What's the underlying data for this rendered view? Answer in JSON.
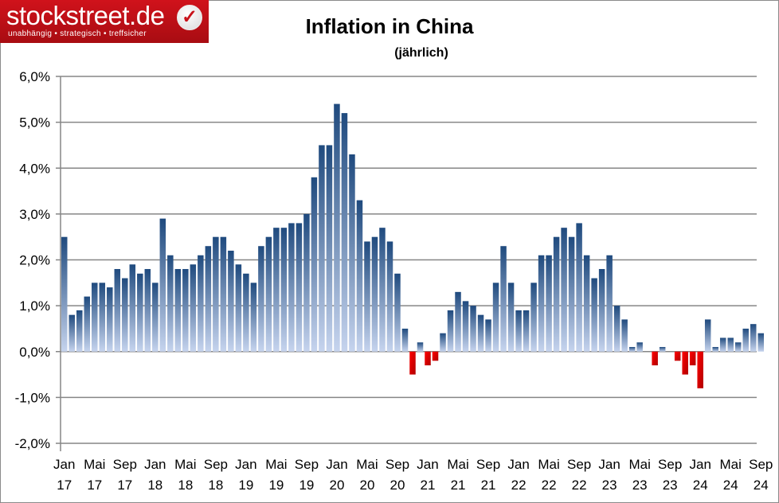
{
  "logo": {
    "name": "stockstreet.de",
    "tagline": "unabhängig • strategisch • treffsicher"
  },
  "chart_data": {
    "type": "bar",
    "title": "Inflation in China",
    "subtitle": "(jährlich)",
    "ylim": [
      -2,
      6
    ],
    "yticks": [
      "-2,0%",
      "-1,0%",
      "0,0%",
      "1,0%",
      "2,0%",
      "3,0%",
      "4,0%",
      "5,0%",
      "6,0%"
    ],
    "grid": true,
    "colors": {
      "positive_top": "#1f4a7e",
      "positive_bottom": "#c6d4ee",
      "negative_top": "#ff0000",
      "negative_bottom": "#b00000"
    },
    "xtick_labels": [
      {
        "month": "Jan",
        "year": "17"
      },
      {
        "month": "Mai",
        "year": "17"
      },
      {
        "month": "Sep",
        "year": "17"
      },
      {
        "month": "Jan",
        "year": "18"
      },
      {
        "month": "Mai",
        "year": "18"
      },
      {
        "month": "Sep",
        "year": "18"
      },
      {
        "month": "Jan",
        "year": "19"
      },
      {
        "month": "Mai",
        "year": "19"
      },
      {
        "month": "Sep",
        "year": "19"
      },
      {
        "month": "Jan",
        "year": "20"
      },
      {
        "month": "Mai",
        "year": "20"
      },
      {
        "month": "Sep",
        "year": "20"
      },
      {
        "month": "Jan",
        "year": "21"
      },
      {
        "month": "Mai",
        "year": "21"
      },
      {
        "month": "Sep",
        "year": "21"
      },
      {
        "month": "Jan",
        "year": "22"
      },
      {
        "month": "Mai",
        "year": "22"
      },
      {
        "month": "Sep",
        "year": "22"
      },
      {
        "month": "Jan",
        "year": "23"
      },
      {
        "month": "Mai",
        "year": "23"
      },
      {
        "month": "Sep",
        "year": "23"
      },
      {
        "month": "Jan",
        "year": "24"
      },
      {
        "month": "Mai",
        "year": "24"
      },
      {
        "month": "Sep",
        "year": "24"
      }
    ],
    "categories": [
      "2017-01",
      "2017-02",
      "2017-03",
      "2017-04",
      "2017-05",
      "2017-06",
      "2017-07",
      "2017-08",
      "2017-09",
      "2017-10",
      "2017-11",
      "2017-12",
      "2018-01",
      "2018-02",
      "2018-03",
      "2018-04",
      "2018-05",
      "2018-06",
      "2018-07",
      "2018-08",
      "2018-09",
      "2018-10",
      "2018-11",
      "2018-12",
      "2019-01",
      "2019-02",
      "2019-03",
      "2019-04",
      "2019-05",
      "2019-06",
      "2019-07",
      "2019-08",
      "2019-09",
      "2019-10",
      "2019-11",
      "2019-12",
      "2020-01",
      "2020-02",
      "2020-03",
      "2020-04",
      "2020-05",
      "2020-06",
      "2020-07",
      "2020-08",
      "2020-09",
      "2020-10",
      "2020-11",
      "2020-12",
      "2021-01",
      "2021-02",
      "2021-03",
      "2021-04",
      "2021-05",
      "2021-06",
      "2021-07",
      "2021-08",
      "2021-09",
      "2021-10",
      "2021-11",
      "2021-12",
      "2022-01",
      "2022-02",
      "2022-03",
      "2022-04",
      "2022-05",
      "2022-06",
      "2022-07",
      "2022-08",
      "2022-09",
      "2022-10",
      "2022-11",
      "2022-12",
      "2023-01",
      "2023-02",
      "2023-03",
      "2023-04",
      "2023-05",
      "2023-06",
      "2023-07",
      "2023-08",
      "2023-09",
      "2023-10",
      "2023-11",
      "2023-12",
      "2024-01",
      "2024-02",
      "2024-03",
      "2024-04",
      "2024-05",
      "2024-06",
      "2024-07",
      "2024-08",
      "2024-09"
    ],
    "values": [
      2.5,
      0.8,
      0.9,
      1.2,
      1.5,
      1.5,
      1.4,
      1.8,
      1.6,
      1.9,
      1.7,
      1.8,
      1.5,
      2.9,
      2.1,
      1.8,
      1.8,
      1.9,
      2.1,
      2.3,
      2.5,
      2.5,
      2.2,
      1.9,
      1.7,
      1.5,
      2.3,
      2.5,
      2.7,
      2.7,
      2.8,
      2.8,
      3.0,
      3.8,
      4.5,
      4.5,
      5.4,
      5.2,
      4.3,
      3.3,
      2.4,
      2.5,
      2.7,
      2.4,
      1.7,
      0.5,
      -0.5,
      0.2,
      -0.3,
      -0.2,
      0.4,
      0.9,
      1.3,
      1.1,
      1.0,
      0.8,
      0.7,
      1.5,
      2.3,
      1.5,
      0.9,
      0.9,
      1.5,
      2.1,
      2.1,
      2.5,
      2.7,
      2.5,
      2.8,
      2.1,
      1.6,
      1.8,
      2.1,
      1.0,
      0.7,
      0.1,
      0.2,
      0.0,
      -0.3,
      0.1,
      0.0,
      -0.2,
      -0.5,
      -0.3,
      -0.8,
      0.7,
      0.1,
      0.3,
      0.3,
      0.2,
      0.5,
      0.6,
      0.4
    ]
  }
}
